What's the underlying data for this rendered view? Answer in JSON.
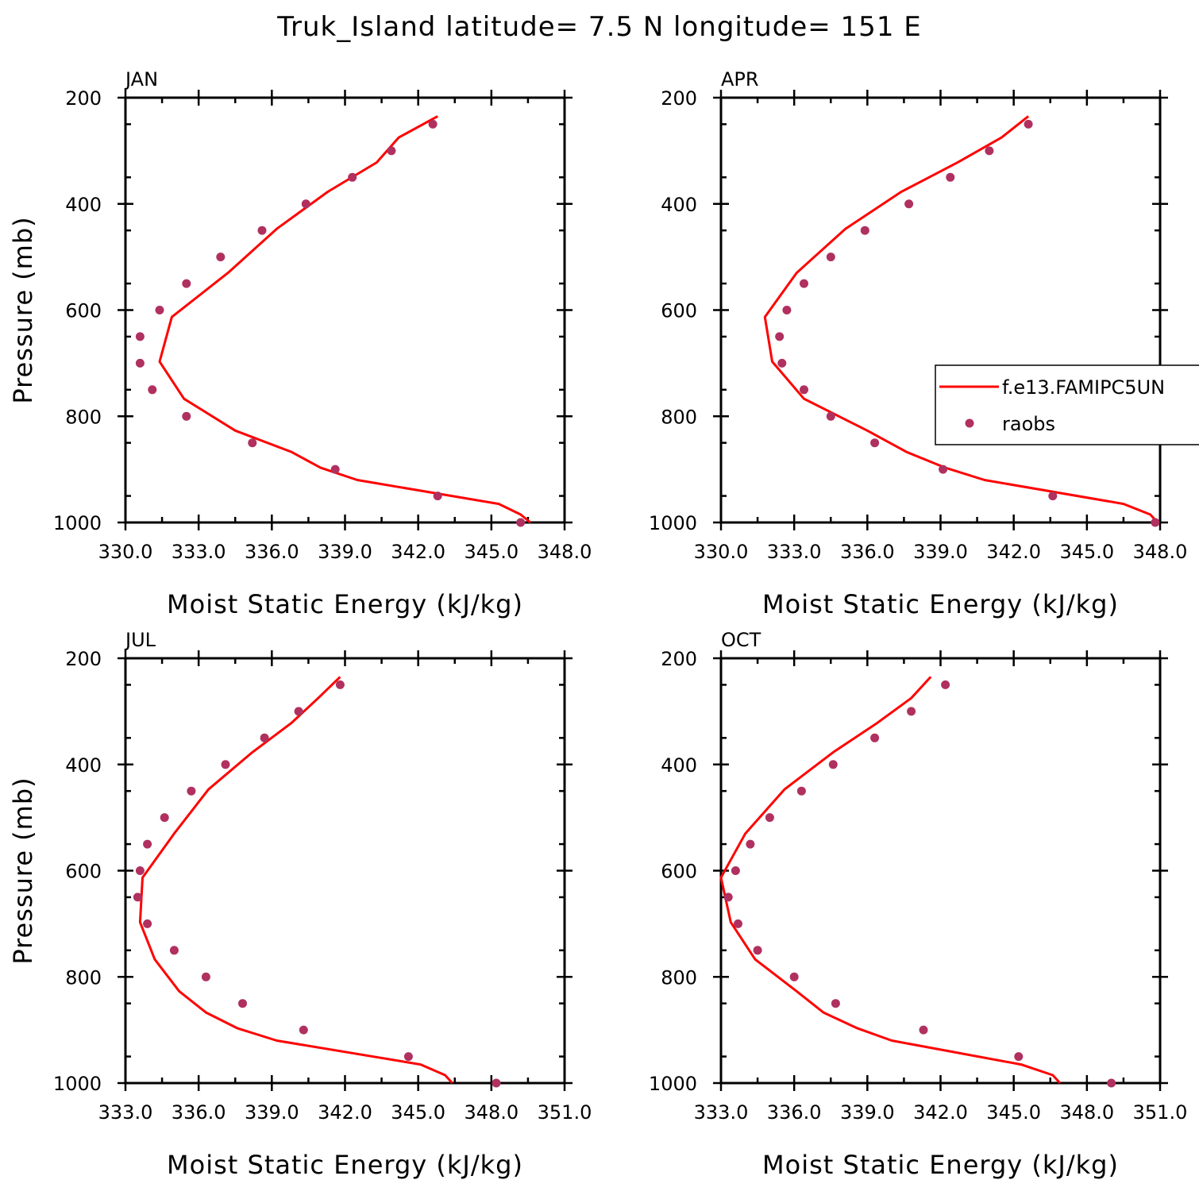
{
  "title": "Truk_Island  latitude= 7.5 N longitude= 151 E",
  "colors": {
    "model": "#ff0000",
    "obs": "#b03060"
  },
  "legend": {
    "model_label": "f.e13.FAMIPC5UN",
    "obs_label": "raobs"
  },
  "chart_data": [
    {
      "type": "line",
      "panel": "JAN",
      "xlabel": "Moist Static Energy (kJ/kg)",
      "ylabel": "Pressure (mb)",
      "xlim": [
        330,
        348
      ],
      "xticks": [
        330,
        333,
        336,
        339,
        342,
        345,
        348
      ],
      "xtick_labels": [
        "330.0",
        "333.0",
        "336.0",
        "339.0",
        "342.0",
        "345.0",
        "348.0"
      ],
      "ylim": [
        1000,
        200
      ],
      "yticks": [
        200,
        400,
        600,
        800,
        1000
      ],
      "ytick_labels": [
        "200",
        "400",
        "600",
        "800",
        "1000"
      ],
      "series": [
        {
          "name": "f.e13.FAMIPC5UN",
          "x": [
            346.6,
            346.2,
            345.3,
            339.5,
            338.0,
            336.8,
            334.5,
            332.4,
            331.4,
            331.9,
            334.2,
            336.2,
            338.3,
            340.3,
            341.2,
            342.8
          ],
          "y": [
            1000,
            985,
            965,
            920,
            897,
            867,
            827,
            767,
            697,
            613,
            530,
            447,
            377,
            322,
            275,
            235
          ]
        },
        {
          "name": "raobs",
          "x": [
            346.2,
            342.8,
            338.6,
            335.2,
            332.5,
            331.1,
            330.6,
            330.6,
            331.4,
            332.5,
            333.9,
            335.6,
            337.4,
            339.3,
            340.9,
            342.6
          ],
          "y": [
            1000,
            950,
            900,
            850,
            800,
            750,
            700,
            650,
            600,
            550,
            500,
            450,
            400,
            350,
            300,
            250
          ]
        }
      ]
    },
    {
      "type": "line",
      "panel": "APR",
      "xlabel": "Moist Static Energy (kJ/kg)",
      "ylabel": "",
      "xlim": [
        330,
        348
      ],
      "xticks": [
        330,
        333,
        336,
        339,
        342,
        345,
        348
      ],
      "xtick_labels": [
        "330.0",
        "333.0",
        "336.0",
        "339.0",
        "342.0",
        "345.0",
        "348.0"
      ],
      "ylim": [
        1000,
        200
      ],
      "yticks": [
        200,
        400,
        600,
        800,
        1000
      ],
      "ytick_labels": [
        "200",
        "400",
        "600",
        "800",
        "1000"
      ],
      "series": [
        {
          "name": "f.e13.FAMIPC5UN",
          "x": [
            347.9,
            347.6,
            346.5,
            340.8,
            339.2,
            337.6,
            336.0,
            333.4,
            332.1,
            331.8,
            333.1,
            335.1,
            337.4,
            339.7,
            341.5,
            342.6
          ],
          "y": [
            1000,
            985,
            965,
            920,
            897,
            867,
            827,
            767,
            697,
            613,
            530,
            447,
            377,
            322,
            275,
            235
          ]
        },
        {
          "name": "raobs",
          "x": [
            347.8,
            343.6,
            339.1,
            336.3,
            334.5,
            333.4,
            332.5,
            332.4,
            332.7,
            333.4,
            334.5,
            335.9,
            337.7,
            339.4,
            341.0,
            342.6
          ],
          "y": [
            1000,
            950,
            900,
            850,
            800,
            750,
            700,
            650,
            600,
            550,
            500,
            450,
            400,
            350,
            300,
            250
          ]
        }
      ]
    },
    {
      "type": "line",
      "panel": "JUL",
      "xlabel": "Moist Static Energy (kJ/kg)",
      "ylabel": "Pressure (mb)",
      "xlim": [
        333,
        351
      ],
      "xticks": [
        333,
        336,
        339,
        342,
        345,
        348,
        351
      ],
      "xtick_labels": [
        "333.0",
        "336.0",
        "339.0",
        "342.0",
        "345.0",
        "348.0",
        "351.0"
      ],
      "ylim": [
        1000,
        200
      ],
      "yticks": [
        200,
        400,
        600,
        800,
        1000
      ],
      "ytick_labels": [
        "200",
        "400",
        "600",
        "800",
        "1000"
      ],
      "series": [
        {
          "name": "f.e13.FAMIPC5UN",
          "x": [
            346.4,
            346.1,
            345.1,
            339.2,
            337.6,
            336.3,
            335.2,
            334.2,
            333.6,
            333.7,
            335.0,
            336.4,
            338.2,
            339.8,
            340.9,
            341.8
          ],
          "y": [
            1000,
            985,
            965,
            920,
            897,
            867,
            827,
            767,
            697,
            613,
            530,
            447,
            377,
            322,
            275,
            235
          ]
        },
        {
          "name": "raobs",
          "x": [
            348.2,
            344.6,
            340.3,
            337.8,
            336.3,
            335.0,
            333.9,
            333.5,
            333.6,
            333.9,
            334.6,
            335.7,
            337.1,
            338.7,
            340.1,
            341.8
          ],
          "y": [
            1000,
            950,
            900,
            850,
            800,
            750,
            700,
            650,
            600,
            550,
            500,
            450,
            400,
            350,
            300,
            250
          ]
        }
      ]
    },
    {
      "type": "line",
      "panel": "OCT",
      "xlabel": "Moist Static Energy (kJ/kg)",
      "ylabel": "",
      "xlim": [
        333,
        351
      ],
      "xticks": [
        333,
        336,
        339,
        342,
        345,
        348,
        351
      ],
      "xtick_labels": [
        "333.0",
        "336.0",
        "339.0",
        "342.0",
        "345.0",
        "348.0",
        "351.0"
      ],
      "ylim": [
        1000,
        200
      ],
      "yticks": [
        200,
        400,
        600,
        800,
        1000
      ],
      "ytick_labels": [
        "200",
        "400",
        "600",
        "800",
        "1000"
      ],
      "series": [
        {
          "name": "f.e13.FAMIPC5UN",
          "x": [
            346.9,
            346.6,
            345.3,
            340.0,
            338.6,
            337.2,
            336.1,
            334.4,
            333.4,
            333.0,
            334.0,
            335.6,
            337.6,
            339.4,
            340.8,
            341.6
          ],
          "y": [
            1000,
            985,
            965,
            920,
            897,
            867,
            827,
            767,
            697,
            613,
            530,
            447,
            377,
            322,
            275,
            235
          ]
        },
        {
          "name": "raobs",
          "x": [
            349.0,
            345.2,
            341.3,
            337.7,
            336.0,
            334.5,
            333.7,
            333.3,
            333.6,
            334.2,
            335.0,
            336.3,
            337.6,
            339.3,
            340.8,
            342.2
          ],
          "y": [
            1000,
            950,
            900,
            850,
            800,
            750,
            700,
            650,
            600,
            550,
            500,
            450,
            400,
            350,
            300,
            250
          ]
        }
      ]
    }
  ]
}
